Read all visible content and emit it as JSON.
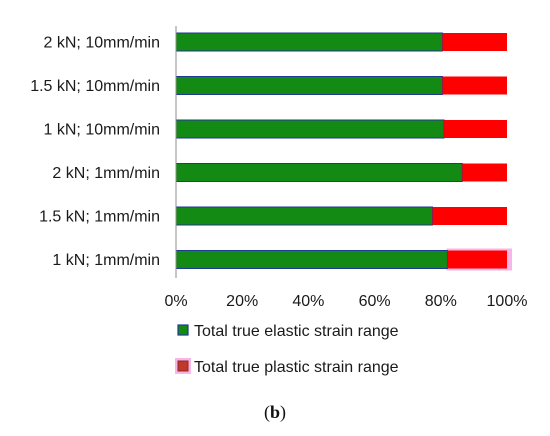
{
  "chart_data": {
    "type": "bar",
    "orientation": "horizontal",
    "stacked": "percent",
    "categories": [
      "2 kN; 10mm/min",
      "1.5 kN; 10mm/min",
      "1 kN; 10mm/min",
      "2 kN; 1mm/min",
      "1.5 kN; 1mm/min",
      "1 kN; 1mm/min"
    ],
    "series": [
      {
        "name": "Total true elastic strain range",
        "color": "#138a13",
        "values": [
          80.5,
          80.5,
          81,
          86.5,
          77.5,
          82
        ]
      },
      {
        "name": "Total true plastic strain range",
        "color": "#ff0000",
        "values": [
          19.5,
          19.5,
          19,
          13.5,
          22.5,
          18
        ]
      }
    ],
    "xticks": [
      "0%",
      "20%",
      "40%",
      "60%",
      "80%",
      "100%"
    ],
    "xlim": [
      0,
      100
    ],
    "grid": false,
    "legend": "bottom",
    "highlight_category": "1 kN; 1mm/min",
    "highlight_color": "#f7b6e8"
  },
  "caption": {
    "open": "(",
    "letter": "b",
    "close": ")"
  }
}
